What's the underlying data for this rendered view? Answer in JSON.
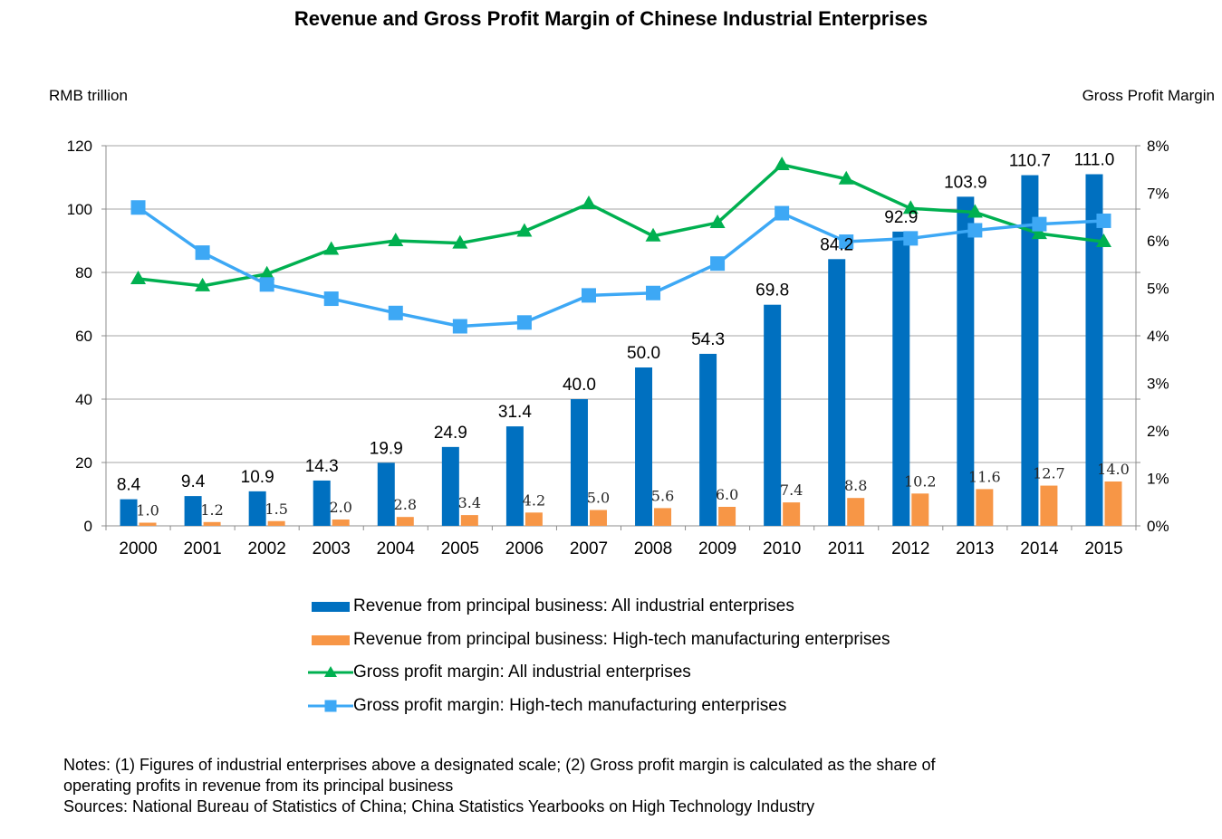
{
  "title": "Revenue and Gross Profit Margin of Chinese Industrial Enterprises",
  "left_axis_unit": "RMB trillion",
  "right_axis_unit": "Gross Profit Margin",
  "notes": [
    "Notes: (1) Figures of industrial enterprises above a designated scale; (2) Gross profit margin is calculated as the share of",
    "operating profits in revenue from its principal business",
    "Sources: National Bureau of Statistics of China; China Statistics Yearbooks on High Technology Industry"
  ],
  "colors": {
    "revenue_all": "#0070C0",
    "revenue_hightech": "#F79646",
    "margin_all": "#00B050",
    "margin_hightech": "#3DA8F5",
    "grid": "#A6A6A6"
  },
  "chart_data": {
    "type": "bar",
    "title": "Revenue and Gross Profit Margin of Chinese Industrial Enterprises",
    "categories": [
      "2000",
      "2001",
      "2002",
      "2003",
      "2004",
      "2005",
      "2006",
      "2007",
      "2008",
      "2009",
      "2010",
      "2011",
      "2012",
      "2013",
      "2014",
      "2015"
    ],
    "y_left": {
      "label": "RMB trillion",
      "min": 0,
      "max": 120,
      "step": 20,
      "ticks": [
        "0",
        "20",
        "40",
        "60",
        "80",
        "100",
        "120"
      ]
    },
    "y_right": {
      "label": "Gross Profit Margin",
      "min": 0,
      "max": 8,
      "step": 1,
      "ticks": [
        "0%",
        "1%",
        "2%",
        "3%",
        "4%",
        "5%",
        "6%",
        "7%",
        "8%"
      ]
    },
    "grid": true,
    "legend_position": "bottom",
    "series": [
      {
        "name": "Revenue from principal business: All industrial enterprises",
        "type": "bar",
        "axis": "left",
        "color": "#0070C0",
        "values": [
          8.4,
          9.4,
          10.9,
          14.3,
          19.9,
          24.9,
          31.4,
          40.0,
          50.0,
          54.3,
          69.8,
          84.2,
          92.9,
          103.9,
          110.7,
          111.0
        ],
        "labels": [
          "8.4",
          "9.4",
          "10.9",
          "14.3",
          "19.9",
          "24.9",
          "31.4",
          "40.0",
          "50.0",
          "54.3",
          "69.8",
          "84.2",
          "92.9",
          "103.9",
          "110.7",
          "111.0"
        ]
      },
      {
        "name": "Revenue from principal business: High-tech manufacturing enterprises",
        "type": "bar",
        "axis": "left",
        "color": "#F79646",
        "values": [
          1.0,
          1.2,
          1.5,
          2.0,
          2.8,
          3.4,
          4.2,
          5.0,
          5.6,
          6.0,
          7.4,
          8.8,
          10.2,
          11.6,
          12.7,
          14.0
        ],
        "labels": [
          "1.0",
          "1.2",
          "1.5",
          "2.0",
          "2.8",
          "3.4",
          "4.2",
          "5.0",
          "5.6",
          "6.0",
          "7.4",
          "8.8",
          "10.2",
          "11.6",
          "12.7",
          "14.0"
        ]
      },
      {
        "name": "Gross profit margin: All industrial enterprises",
        "type": "line",
        "axis": "right",
        "marker": "triangle",
        "color": "#00B050",
        "values": [
          5.2,
          5.05,
          5.3,
          5.82,
          6.0,
          5.95,
          6.2,
          6.78,
          6.1,
          6.38,
          7.6,
          7.3,
          6.68,
          6.6,
          6.15,
          5.98
        ]
      },
      {
        "name": "Gross profit margin: High-tech manufacturing enterprises",
        "type": "line",
        "axis": "right",
        "marker": "square",
        "color": "#3DA8F5",
        "values": [
          6.7,
          5.75,
          5.08,
          4.78,
          4.48,
          4.2,
          4.28,
          4.85,
          4.9,
          5.52,
          6.58,
          5.98,
          6.05,
          6.22,
          6.35,
          6.42
        ]
      }
    ]
  }
}
